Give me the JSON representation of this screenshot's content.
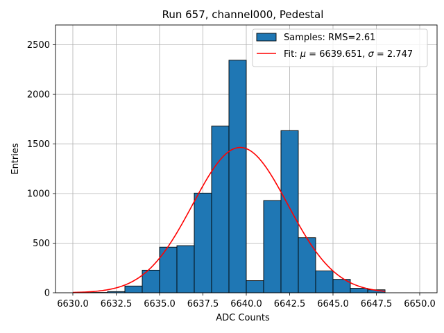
{
  "chart_data": {
    "type": "histogram",
    "title": "Run 657, channel000, Pedestal",
    "xlabel": "ADC Counts",
    "ylabel": "Entries",
    "xlim": [
      6629.0,
      6651.0
    ],
    "ylim": [
      0,
      2700
    ],
    "xticks": [
      6630.0,
      6632.5,
      6635.0,
      6637.5,
      6640.0,
      6642.5,
      6645.0,
      6647.5,
      6650.0
    ],
    "xtick_labels": [
      "6630.0",
      "6632.5",
      "6635.0",
      "6637.5",
      "6640.0",
      "6642.5",
      "6645.0",
      "6647.5",
      "6650.0"
    ],
    "yticks": [
      0,
      500,
      1000,
      1500,
      2000,
      2500
    ],
    "ytick_labels": [
      "0",
      "500",
      "1000",
      "1500",
      "2000",
      "2500"
    ],
    "grid": true,
    "legend_position": "top-right",
    "bin_width": 1.0,
    "bins": [
      {
        "left": 6630,
        "value": 1
      },
      {
        "left": 6631,
        "value": 3
      },
      {
        "left": 6632,
        "value": 12
      },
      {
        "left": 6633,
        "value": 68
      },
      {
        "left": 6634,
        "value": 228
      },
      {
        "left": 6635,
        "value": 460
      },
      {
        "left": 6636,
        "value": 475
      },
      {
        "left": 6637,
        "value": 1005
      },
      {
        "left": 6638,
        "value": 1680
      },
      {
        "left": 6639,
        "value": 2345
      },
      {
        "left": 6640,
        "value": 122
      },
      {
        "left": 6641,
        "value": 930
      },
      {
        "left": 6642,
        "value": 1635
      },
      {
        "left": 6643,
        "value": 555
      },
      {
        "left": 6644,
        "value": 220
      },
      {
        "left": 6645,
        "value": 135
      },
      {
        "left": 6646,
        "value": 45
      },
      {
        "left": 6647,
        "value": 30
      }
    ],
    "fit": {
      "mu": 6639.651,
      "sigma": 2.747,
      "amplitude": 1465,
      "x_range": [
        6630.0,
        6648.0
      ]
    },
    "series": [
      {
        "name": "Samples: RMS=2.61",
        "color": "#1f77b4",
        "kind": "histogram"
      },
      {
        "name_prefix": "Fit: ",
        "mu_symbol": "μ",
        "mu_text": " = 6639.651, ",
        "sigma_symbol": "σ",
        "sigma_text": " = 2.747",
        "color": "#ff0000",
        "kind": "line"
      }
    ]
  }
}
